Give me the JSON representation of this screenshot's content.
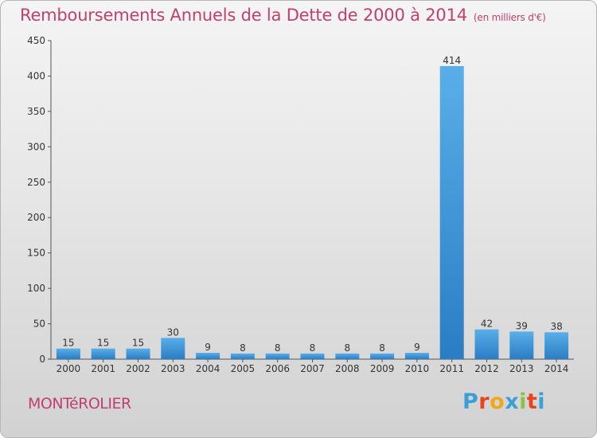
{
  "header": {
    "title": "Remboursements Annuels de la Dette de 2000 à 2014",
    "unit": "(en milliers d'€)"
  },
  "footer": {
    "commune": "MONTéROLIER",
    "logo_letters": [
      "P",
      "r",
      "o",
      "x",
      "i",
      "t",
      "i"
    ],
    "logo_colors": [
      "#3aa0d8",
      "#e8431f",
      "#f0a81a",
      "#3aa0d8",
      "#8bc34a",
      "#e8431f",
      "#3aa0d8"
    ]
  },
  "colors": {
    "bar_light": "#5aaee8",
    "bar_dark": "#2a7dc4",
    "title": "#c0406f"
  },
  "chart_data": {
    "type": "bar",
    "title": "Remboursements Annuels de la Dette de 2000 à 2014",
    "xlabel": "",
    "ylabel": "",
    "ylim": [
      0,
      450
    ],
    "yticks": [
      0,
      50,
      100,
      150,
      200,
      250,
      300,
      350,
      400,
      450
    ],
    "grid": false,
    "categories": [
      "2000",
      "2001",
      "2002",
      "2003",
      "2004",
      "2005",
      "2006",
      "2007",
      "2008",
      "2009",
      "2010",
      "2011",
      "2012",
      "2013",
      "2014"
    ],
    "values": [
      15,
      15,
      15,
      30,
      9,
      8,
      8,
      8,
      8,
      8,
      9,
      414,
      42,
      39,
      38
    ]
  }
}
